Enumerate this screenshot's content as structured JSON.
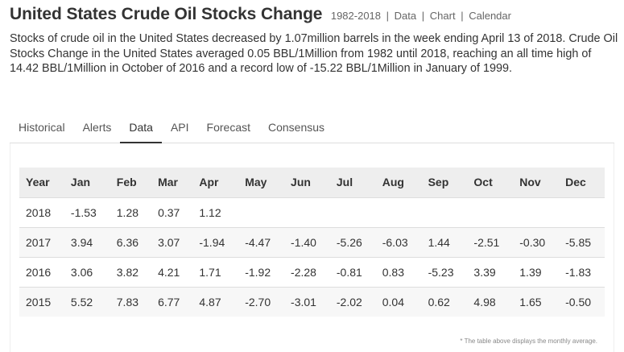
{
  "header": {
    "title": "United States Crude Oil Stocks Change",
    "range": "1982-2018",
    "links": [
      "Data",
      "Chart",
      "Calendar"
    ]
  },
  "description": "Stocks of crude oil in the United States decreased by 1.07million barrels in the week ending April 13 of 2018. Crude Oil Stocks Change in the United States averaged 0.05 BBL/1Million from 1982 until 2018, reaching an all time high of 14.42 BBL/1Million in October of 2016 and a record low of -15.22 BBL/1Million in January of 1999.",
  "tabs": [
    {
      "label": "Historical"
    },
    {
      "label": "Alerts"
    },
    {
      "label": "Data",
      "active": true
    },
    {
      "label": "API"
    },
    {
      "label": "Forecast"
    },
    {
      "label": "Consensus"
    }
  ],
  "table": {
    "headers": [
      "Year",
      "Jan",
      "Feb",
      "Mar",
      "Apr",
      "May",
      "Jun",
      "Jul",
      "Aug",
      "Sep",
      "Oct",
      "Nov",
      "Dec"
    ],
    "rows": [
      [
        "2018",
        "-1.53",
        "1.28",
        "0.37",
        "1.12",
        "",
        "",
        "",
        "",
        "",
        "",
        "",
        ""
      ],
      [
        "2017",
        "3.94",
        "6.36",
        "3.07",
        "-1.94",
        "-4.47",
        "-1.40",
        "-5.26",
        "-6.03",
        "1.44",
        "-2.51",
        "-0.30",
        "-5.85"
      ],
      [
        "2016",
        "3.06",
        "3.82",
        "4.21",
        "1.71",
        "-1.92",
        "-2.28",
        "-0.81",
        "0.83",
        "-5.23",
        "3.39",
        "1.39",
        "-1.83"
      ],
      [
        "2015",
        "5.52",
        "7.83",
        "6.77",
        "4.87",
        "-2.70",
        "-3.01",
        "-2.02",
        "0.04",
        "0.62",
        "4.98",
        "1.65",
        "-0.50"
      ]
    ],
    "footnote": "* The table above displays the monthly average."
  }
}
